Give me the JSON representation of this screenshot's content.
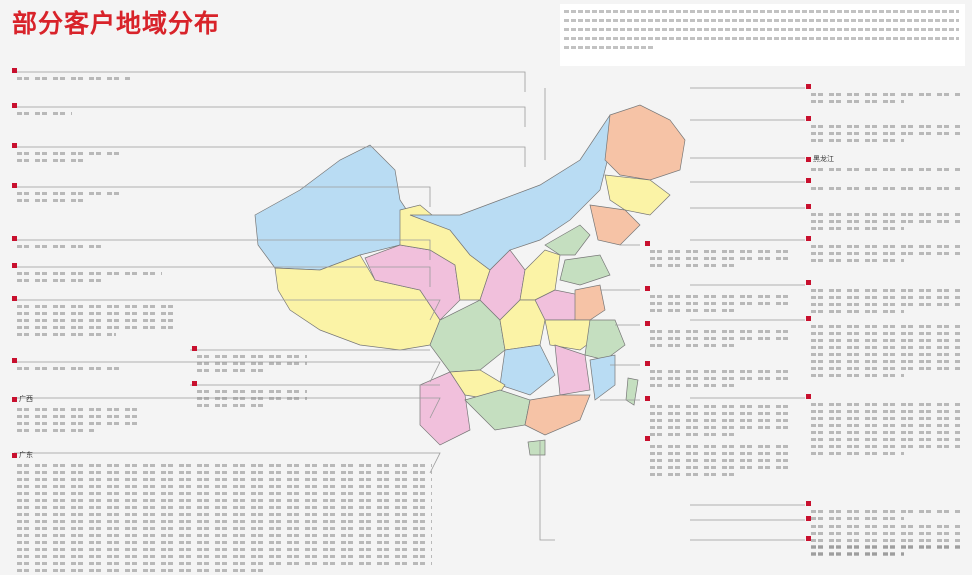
{
  "title": "部分客户地域分布",
  "intro": {
    "heading": "",
    "lines": 5
  },
  "colors": {
    "title": "#d8232a",
    "marker": "#c8102e",
    "regions": [
      "#b9dcf3",
      "#fbf3a6",
      "#f1c0dc",
      "#c5dfc0",
      "#f6c3a6",
      "#e3d0ef"
    ]
  },
  "left_blocks": [
    {
      "name": "",
      "lines": 1
    },
    {
      "name": "",
      "lines": 1
    },
    {
      "name": "",
      "lines": 2
    },
    {
      "name": "",
      "lines": 2
    },
    {
      "name": "",
      "lines": 1
    },
    {
      "name": "",
      "lines": 2
    },
    {
      "name": "",
      "lines": 5
    },
    {
      "name": "",
      "lines": 1
    },
    {
      "name": "广西",
      "lines": 4
    },
    {
      "name": "广东",
      "lines": 16
    }
  ],
  "right_blocks": [
    {
      "name": "",
      "lines": 2
    },
    {
      "name": "",
      "lines": 3
    },
    {
      "name": "黑龙江",
      "lines": 1
    },
    {
      "name": "",
      "lines": 1
    },
    {
      "name": "",
      "lines": 3
    },
    {
      "name": "",
      "lines": 3
    },
    {
      "name": "",
      "lines": 4
    },
    {
      "name": "",
      "lines": 8
    },
    {
      "name": "",
      "lines": 8
    },
    {
      "name": "",
      "lines": 2
    },
    {
      "name": "",
      "lines": 5
    },
    {
      "name": "",
      "lines": 2
    }
  ]
}
